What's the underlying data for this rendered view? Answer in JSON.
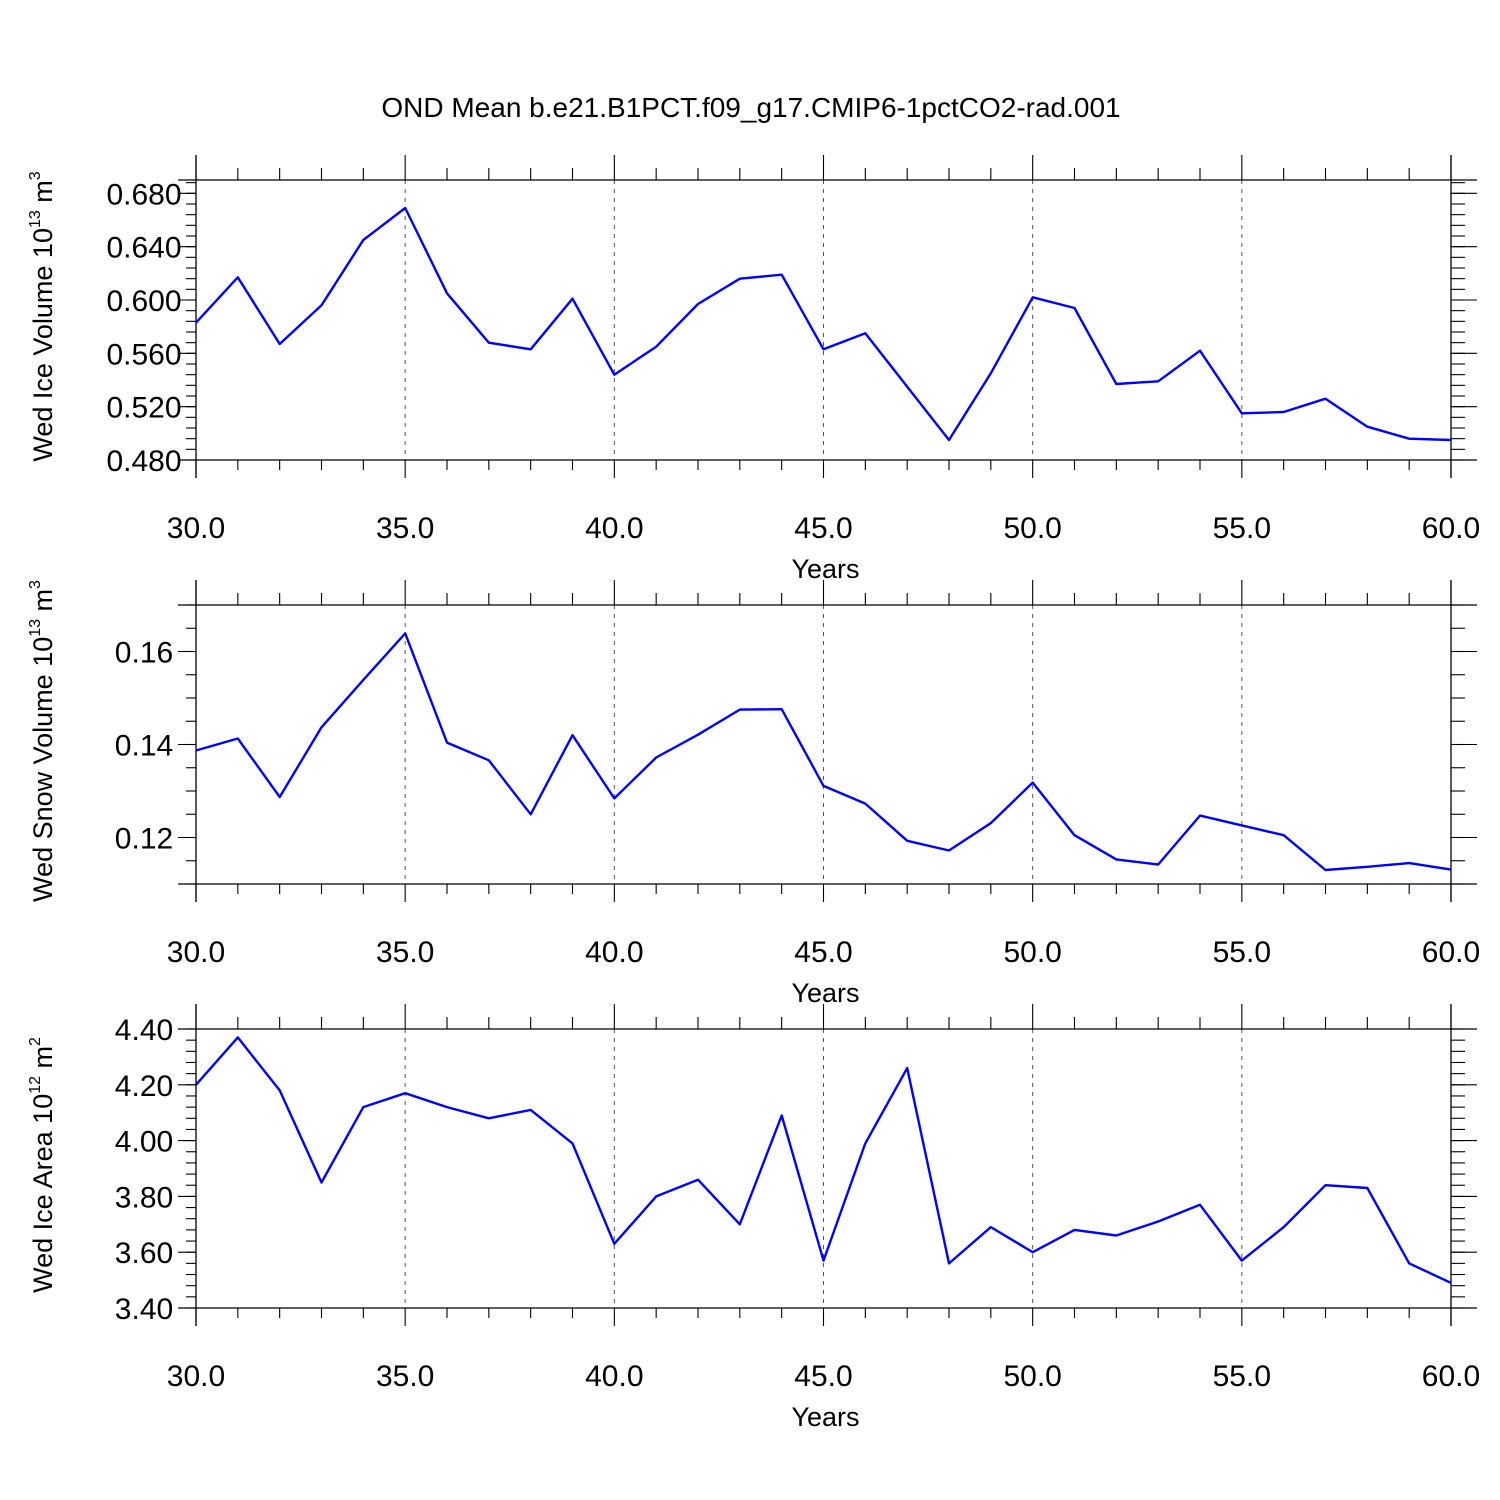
{
  "title": "OND Mean b.e21.B1PCT.f09_g17.CMIP6-1pctCO2-rad.001",
  "colors": {
    "series": "#0000ff",
    "axis": "#000000",
    "grid": "#555555"
  },
  "chart_data": [
    {
      "type": "line",
      "name": "ice-volume",
      "ylabel": {
        "text": "Wed Ice Volume 10",
        "exp": "13",
        "unit": " m",
        "unit_exp": "3"
      },
      "xlabel": "Years",
      "xlim": [
        30,
        60
      ],
      "ylim": [
        0.48,
        0.69
      ],
      "xticks": [
        30,
        35,
        40,
        45,
        50,
        55,
        60
      ],
      "xtick_labels": [
        "30.0",
        "35.0",
        "40.0",
        "45.0",
        "50.0",
        "55.0",
        "60.0"
      ],
      "yticks": [
        0.48,
        0.52,
        0.56,
        0.6,
        0.64,
        0.68
      ],
      "ytick_labels": [
        "0.480",
        "0.520",
        "0.560",
        "0.600",
        "0.640",
        "0.680"
      ],
      "yminor_step": 0.008,
      "series": [
        {
          "name": "Wed Ice Volume",
          "x": [
            30,
            31,
            32,
            33,
            34,
            35,
            36,
            37,
            38,
            39,
            40,
            41,
            42,
            43,
            44,
            45,
            46,
            47,
            48,
            49,
            50,
            51,
            52,
            53,
            54,
            55,
            56,
            57,
            58,
            59,
            60
          ],
          "values": [
            0.583,
            0.617,
            0.567,
            0.596,
            0.645,
            0.669,
            0.605,
            0.568,
            0.563,
            0.601,
            0.544,
            0.565,
            0.597,
            0.616,
            0.619,
            0.563,
            0.575,
            0.535,
            0.495,
            0.545,
            0.602,
            0.594,
            0.537,
            0.539,
            0.562,
            0.515,
            0.516,
            0.526,
            0.505,
            0.496,
            0.495
          ]
        }
      ]
    },
    {
      "type": "line",
      "name": "snow-volume",
      "ylabel": {
        "text": "Wed Snow Volume 10",
        "exp": "13",
        "unit": " m",
        "unit_exp": "3"
      },
      "xlabel": "Years",
      "xlim": [
        30,
        60
      ],
      "ylim": [
        0.11,
        0.17
      ],
      "xticks": [
        30,
        35,
        40,
        45,
        50,
        55,
        60
      ],
      "xtick_labels": [
        "30.0",
        "35.0",
        "40.0",
        "45.0",
        "50.0",
        "55.0",
        "60.0"
      ],
      "yticks": [
        0.12,
        0.14,
        0.16
      ],
      "ytick_labels": [
        "0.12",
        "0.14",
        "0.16"
      ],
      "yminor_step": 0.005,
      "series": [
        {
          "name": "Wed Snow Volume",
          "x": [
            30,
            31,
            32,
            33,
            34,
            35,
            36,
            37,
            38,
            39,
            40,
            41,
            42,
            43,
            44,
            45,
            46,
            47,
            48,
            49,
            50,
            51,
            52,
            53,
            54,
            55,
            56,
            57,
            58,
            59,
            60
          ],
          "values": [
            0.1387,
            0.1413,
            0.1287,
            0.1437,
            0.1539,
            0.1639,
            0.1404,
            0.1366,
            0.125,
            0.142,
            0.1284,
            0.1372,
            0.1421,
            0.1475,
            0.1476,
            0.1311,
            0.1273,
            0.1193,
            0.1172,
            0.1231,
            0.1318,
            0.1205,
            0.1153,
            0.1142,
            0.1247,
            0.1226,
            0.1205,
            0.113,
            0.1137,
            0.1145,
            0.1131
          ]
        }
      ]
    },
    {
      "type": "line",
      "name": "ice-area",
      "ylabel": {
        "text": "Wed Ice Area 10",
        "exp": "12",
        "unit": " m",
        "unit_exp": "2"
      },
      "xlabel": "Years",
      "xlim": [
        30,
        60
      ],
      "ylim": [
        3.4,
        4.4
      ],
      "xticks": [
        30,
        35,
        40,
        45,
        50,
        55,
        60
      ],
      "xtick_labels": [
        "30.0",
        "35.0",
        "40.0",
        "45.0",
        "50.0",
        "55.0",
        "60.0"
      ],
      "yticks": [
        3.4,
        3.6,
        3.8,
        4.0,
        4.2,
        4.4
      ],
      "ytick_labels": [
        "3.40",
        "3.60",
        "3.80",
        "4.00",
        "4.20",
        "4.40"
      ],
      "yminor_step": 0.04,
      "series": [
        {
          "name": "Wed Ice Area",
          "x": [
            30,
            31,
            32,
            33,
            34,
            35,
            36,
            37,
            38,
            39,
            40,
            41,
            42,
            43,
            44,
            45,
            46,
            47,
            48,
            49,
            50,
            51,
            52,
            53,
            54,
            55,
            56,
            57,
            58,
            59,
            60
          ],
          "values": [
            4.2,
            4.37,
            4.18,
            3.85,
            4.12,
            4.17,
            4.12,
            4.08,
            4.11,
            3.99,
            3.63,
            3.8,
            3.86,
            3.7,
            4.09,
            3.57,
            3.99,
            4.26,
            3.56,
            3.69,
            3.6,
            3.68,
            3.66,
            3.71,
            3.77,
            3.57,
            3.69,
            3.84,
            3.83,
            3.56,
            3.49
          ]
        }
      ]
    }
  ]
}
